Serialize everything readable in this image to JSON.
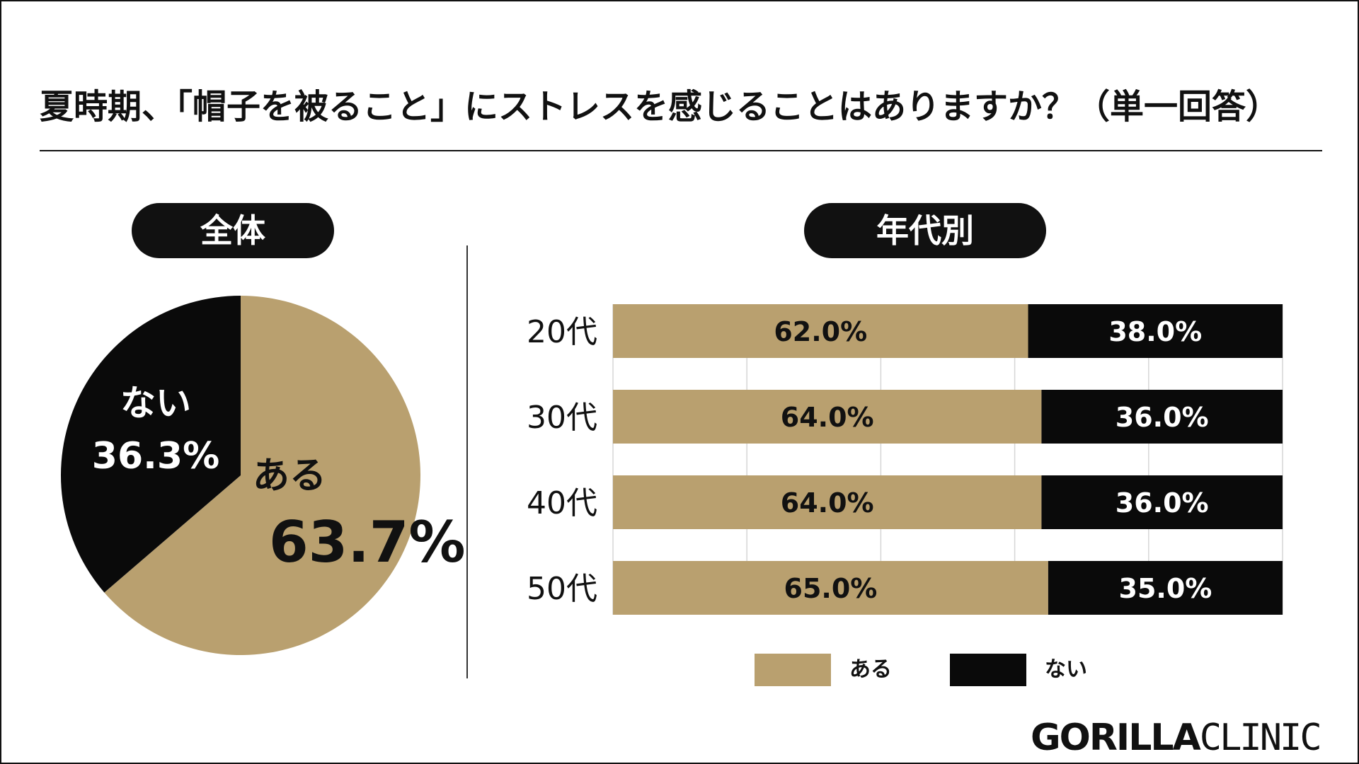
{
  "title": "夏時期、「帽子を被ること」にストレスを感じることはありますか？（単一回答）",
  "overall_label": "全体",
  "age_label": "年代別",
  "colors": {
    "aru": "#b9a06f",
    "nai": "#0a0a0a"
  },
  "legend": [
    {
      "name": "ある",
      "color": "#b9a06f"
    },
    {
      "name": "ない",
      "color": "#0a0a0a"
    }
  ],
  "brand": {
    "part1": "GORILLA",
    "part2": "CLINIC"
  },
  "chart_data": [
    {
      "type": "pie",
      "title": "全体",
      "slices": [
        {
          "label": "ある",
          "value": 63.7,
          "value_label": "63.7%",
          "color": "#b9a06f"
        },
        {
          "label": "ない",
          "value": 36.3,
          "value_label": "36.3%",
          "color": "#0a0a0a"
        }
      ]
    },
    {
      "type": "bar",
      "orientation": "horizontal",
      "stacked": true,
      "title": "年代別",
      "categories": [
        "20代",
        "30代",
        "40代",
        "50代"
      ],
      "series": [
        {
          "name": "ある",
          "color": "#b9a06f",
          "values": [
            62.0,
            64.0,
            64.0,
            65.0
          ],
          "labels": [
            "62.0%",
            "64.0%",
            "64.0%",
            "65.0%"
          ]
        },
        {
          "name": "ない",
          "color": "#0a0a0a",
          "values": [
            38.0,
            36.0,
            36.0,
            35.0
          ],
          "labels": [
            "38.0%",
            "36.0%",
            "36.0%",
            "35.0%"
          ]
        }
      ],
      "xlim": [
        0,
        100
      ],
      "grid": true,
      "legend": "bottom"
    }
  ]
}
